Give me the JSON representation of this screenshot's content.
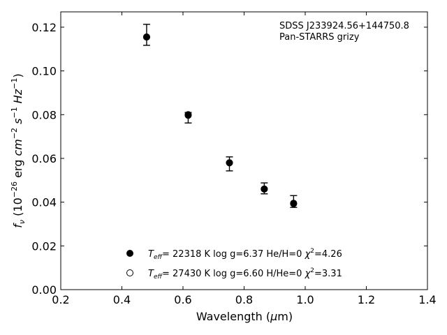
{
  "chart_data": {
    "type": "scatter",
    "annotation": {
      "object": "SDSS J233924.56+144750.8",
      "photometry": "Pan-STARRS grizy"
    },
    "xlabel": "Wavelength (μm)",
    "ylabel": "f_ν (10^-26 erg cm^-2 s^-1 Hz^-1)",
    "xlim": [
      0.2,
      1.4
    ],
    "ylim": [
      0.0,
      0.127
    ],
    "x_ticks": [
      "0.2",
      "0.4",
      "0.6",
      "0.8",
      "1.0",
      "1.2",
      "1.4"
    ],
    "y_ticks": [
      "0.00",
      "0.02",
      "0.04",
      "0.06",
      "0.08",
      "0.10",
      "0.12"
    ],
    "observed": {
      "x": [
        0.481,
        0.617,
        0.752,
        0.866,
        0.962
      ],
      "y": [
        0.1165,
        0.0786,
        0.0575,
        0.0463,
        0.0403
      ],
      "yerr": [
        0.0048,
        0.0024,
        0.0032,
        0.0025,
        0.0027
      ]
    },
    "series": [
      {
        "name": "Teff = 22318 K  log g=6.37  He/H=0  χ2=4.26",
        "marker": "filled",
        "x": [
          0.481,
          0.617,
          0.752,
          0.866,
          0.962
        ],
        "y": [
          0.1155,
          0.08,
          0.058,
          0.046,
          0.0395
        ]
      },
      {
        "name": "Teff = 27430 K  log g=6.60  H/He=0  χ2=3.31",
        "marker": "open",
        "x": [
          0.481,
          0.617,
          0.752,
          0.866,
          0.962
        ],
        "y": [
          0.1155,
          0.0797,
          0.058,
          0.046,
          0.0393
        ]
      }
    ],
    "legend": {
      "placement": "lower-center",
      "entries": [
        {
          "teff": "= 22318 K  log g=6.37  He/H=0  ",
          "chi2": "=4.26"
        },
        {
          "teff": "= 27430 K  log g=6.60  H/He=0  ",
          "chi2": "=3.31"
        }
      ]
    },
    "grid": false
  }
}
